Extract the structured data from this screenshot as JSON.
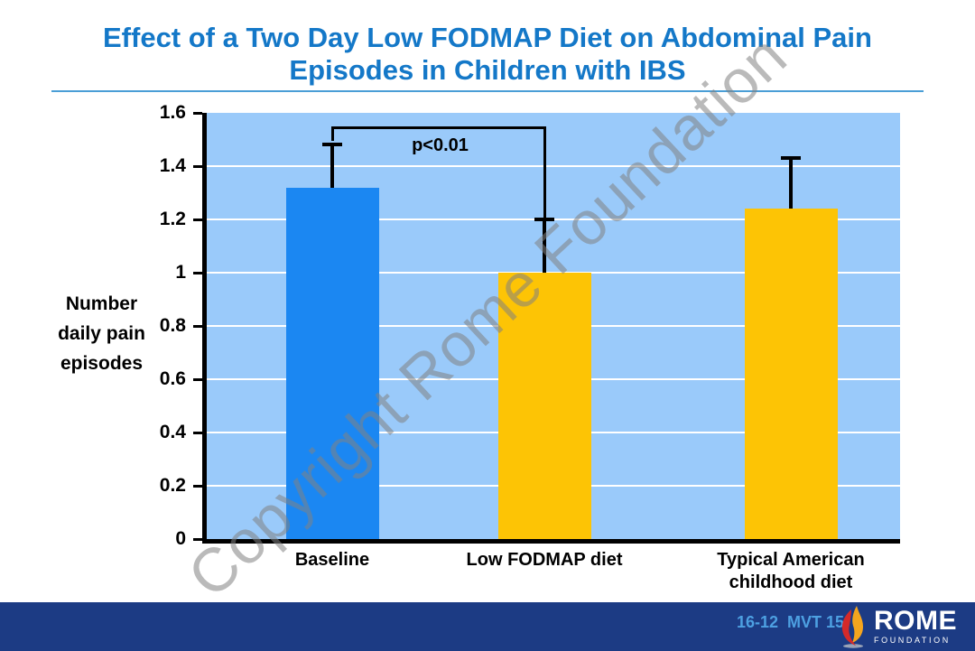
{
  "slide": {
    "title_line1": "Effect of a Two Day Low FODMAP Diet on Abdominal Pain",
    "title_line2": "Episodes in Children with IBS",
    "watermark": "Copyright Rome Foundation"
  },
  "chart_data": {
    "type": "bar",
    "categories": [
      "Baseline",
      "Low FODMAP diet",
      "Typical American childhood diet"
    ],
    "values": [
      1.32,
      1.0,
      1.24
    ],
    "error_upper": [
      1.48,
      1.2,
      1.43
    ],
    "bar_colors": [
      "#1b87f2",
      "#fdc405",
      "#fdc405"
    ],
    "ylabel": "Number daily pain episodes",
    "ylabel_lines": [
      "Number",
      "daily pain",
      "episodes"
    ],
    "ylim": [
      0,
      1.6
    ],
    "yticks": [
      "0",
      "0.2",
      "0.4",
      "0.6",
      "0.8",
      "1",
      "1.2",
      "1.4",
      "1.6"
    ],
    "grid": true,
    "plot_bg": "#9acafa",
    "gridline_color": "#ffffff",
    "legend": "none",
    "significance": {
      "label": "p<0.01",
      "between": [
        0,
        1
      ],
      "bracket_y": 1.55
    }
  },
  "footer": {
    "slide_code": "16-12  MVT 15",
    "logo_text": "ROME",
    "logo_subtext": "FOUNDATION"
  }
}
